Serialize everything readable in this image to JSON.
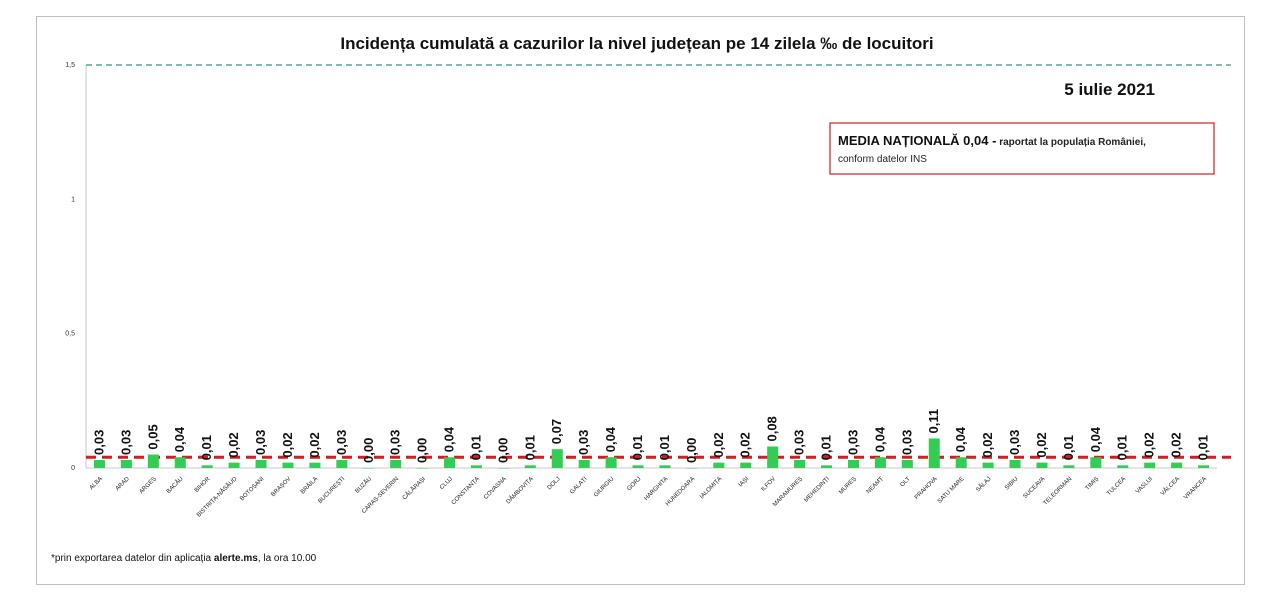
{
  "chart_data": {
    "type": "bar",
    "title": "Incidența cumulată a cazurilor la nivel județean pe 14 zilela ‰ de locuitori",
    "date_label": "5 iulie 2021",
    "ylim": [
      0,
      1.5
    ],
    "yticks": [
      "0",
      "0,5",
      "1",
      "1,5"
    ],
    "ytick_values": [
      0,
      0.5,
      1,
      1.5
    ],
    "grid": false,
    "reference_lines": [
      {
        "value": 1.5,
        "style": "dashed",
        "color": "#2e9e6b"
      },
      {
        "value": 0.04,
        "style": "dashed",
        "color": "#d11f1f"
      }
    ],
    "bar_color": "#33cc55",
    "categories": [
      "ALBA",
      "ARAD",
      "ARGEȘ",
      "BACĂU",
      "BIHOR",
      "BISTRIȚA-NĂSĂUD",
      "BOTOȘANI",
      "BRAȘOV",
      "BRĂILA",
      "BUCUREȘTI",
      "BUZĂU",
      "CARAȘ-SEVERIN",
      "CĂLĂRAȘI",
      "CLUJ",
      "CONSTANȚA",
      "COVASNA",
      "DÂMBOVIȚA",
      "DOLJ",
      "GALAȚI",
      "GIURGIU",
      "GORJ",
      "HARGHITA",
      "HUNEDOARA",
      "IALOMIȚA",
      "IAȘI",
      "ILFOV",
      "MARAMUREȘ",
      "MEHEDINȚI",
      "MUREȘ",
      "NEAMȚ",
      "OLT",
      "PRAHOVA",
      "SATU MARE",
      "SĂLAJ",
      "SIBIU",
      "SUCEAVA",
      "TELEORMAN",
      "TIMIȘ",
      "TULCEA",
      "VASLUI",
      "VÂLCEA",
      "VRANCEA"
    ],
    "values": [
      0.03,
      0.03,
      0.05,
      0.04,
      0.01,
      0.02,
      0.03,
      0.02,
      0.02,
      0.03,
      0.0,
      0.03,
      0.0,
      0.04,
      0.01,
      0.0,
      0.01,
      0.07,
      0.03,
      0.04,
      0.01,
      0.01,
      0.0,
      0.02,
      0.02,
      0.08,
      0.03,
      0.01,
      0.03,
      0.04,
      0.03,
      0.11,
      0.04,
      0.02,
      0.03,
      0.02,
      0.01,
      0.04,
      0.01,
      0.02,
      0.02,
      0.01
    ],
    "value_labels": [
      "0,03",
      "0,03",
      "0,05",
      "0,04",
      "0,01",
      "0,02",
      "0,03",
      "0,02",
      "0,02",
      "0,03",
      "0,00",
      "0,03",
      "0,00",
      "0,04",
      "0,01",
      "0,00",
      "0,01",
      "0,07",
      "0,03",
      "0,04",
      "0,01",
      "0,01",
      "0,00",
      "0,02",
      "0,02",
      "0,08",
      "0,03",
      "0,01",
      "0,03",
      "0,04",
      "0,03",
      "0,11",
      "0,04",
      "0,02",
      "0,03",
      "0,02",
      "0,01",
      "0,04",
      "0,01",
      "0,02",
      "0,02",
      "0,01"
    ],
    "annotation": {
      "bold": "MEDIA NAȚIONALĂ 0,04 -",
      "text_line1": " raportat la populația României,",
      "text_line2": "conform datelor INS",
      "border_color": "#d11f1f"
    },
    "footnote": {
      "prefix": "*prin exportarea datelor din aplicația ",
      "bold": "alerte.ms",
      "suffix": ", la ora 10.00"
    }
  }
}
